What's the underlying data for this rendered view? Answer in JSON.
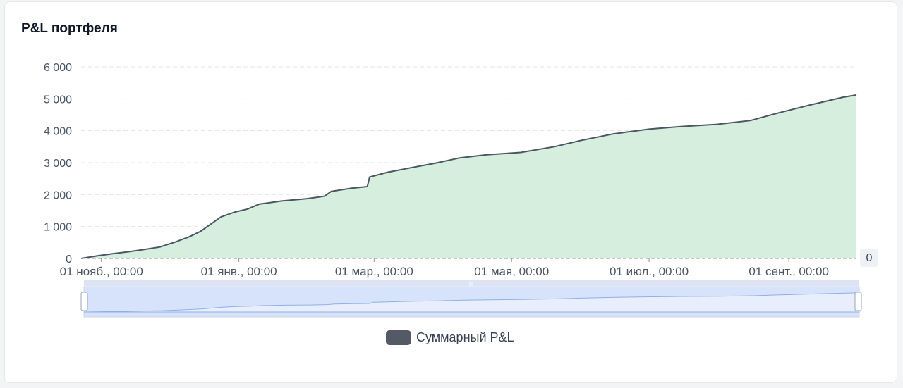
{
  "card": {
    "title": "P&L портфеля"
  },
  "chart_data": {
    "type": "area",
    "title": "P&L портфеля",
    "x_start": "2023-10-23",
    "x_end": "2024-10-01",
    "x_ticks": [
      {
        "label": "01 нояб., 00:00",
        "date": "2023-11-01"
      },
      {
        "label": "01 янв., 00:00",
        "date": "2024-01-01"
      },
      {
        "label": "01 мар., 00:00",
        "date": "2024-03-01"
      },
      {
        "label": "01 мая, 00:00",
        "date": "2024-05-01"
      },
      {
        "label": "01 июл., 00:00",
        "date": "2024-07-01"
      },
      {
        "label": "01 сент., 00:00",
        "date": "2024-09-01"
      }
    ],
    "y_ticks": [
      {
        "label": "0",
        "value": 0
      },
      {
        "label": "1 000",
        "value": 1000
      },
      {
        "label": "2 000",
        "value": 2000
      },
      {
        "label": "3 000",
        "value": 3000
      },
      {
        "label": "4 000",
        "value": 4000
      },
      {
        "label": "5 000",
        "value": 5000
      },
      {
        "label": "6 000",
        "value": 6000
      }
    ],
    "ylim": [
      0,
      6000
    ],
    "grid": true,
    "end_label": "0",
    "series": [
      {
        "name": "Суммарный P&L",
        "color": "#4b5563",
        "fill": "#d5eedd",
        "points": [
          [
            "2023-10-23",
            0
          ],
          [
            "2023-10-30",
            80
          ],
          [
            "2023-11-06",
            150
          ],
          [
            "2023-11-13",
            210
          ],
          [
            "2023-11-20",
            280
          ],
          [
            "2023-11-27",
            360
          ],
          [
            "2023-12-04",
            520
          ],
          [
            "2023-12-10",
            680
          ],
          [
            "2023-12-15",
            850
          ],
          [
            "2023-12-19",
            1050
          ],
          [
            "2023-12-24",
            1300
          ],
          [
            "2023-12-30",
            1450
          ],
          [
            "2024-01-05",
            1550
          ],
          [
            "2024-01-10",
            1700
          ],
          [
            "2024-01-20",
            1800
          ],
          [
            "2024-01-31",
            1870
          ],
          [
            "2024-02-08",
            1950
          ],
          [
            "2024-02-11",
            2100
          ],
          [
            "2024-02-20",
            2200
          ],
          [
            "2024-02-27",
            2250
          ],
          [
            "2024-02-28",
            2550
          ],
          [
            "2024-03-07",
            2700
          ],
          [
            "2024-03-18",
            2850
          ],
          [
            "2024-03-28",
            2980
          ],
          [
            "2024-04-08",
            3150
          ],
          [
            "2024-04-20",
            3250
          ],
          [
            "2024-05-05",
            3320
          ],
          [
            "2024-05-20",
            3500
          ],
          [
            "2024-06-01",
            3700
          ],
          [
            "2024-06-15",
            3900
          ],
          [
            "2024-07-01",
            4050
          ],
          [
            "2024-07-15",
            4130
          ],
          [
            "2024-07-31",
            4200
          ],
          [
            "2024-08-15",
            4320
          ],
          [
            "2024-08-27",
            4550
          ],
          [
            "2024-09-10",
            4800
          ],
          [
            "2024-09-25",
            5050
          ],
          [
            "2024-10-01",
            5120
          ]
        ]
      }
    ],
    "legend": "bottom-center"
  },
  "slider": {
    "handle_glyph": "|||"
  }
}
